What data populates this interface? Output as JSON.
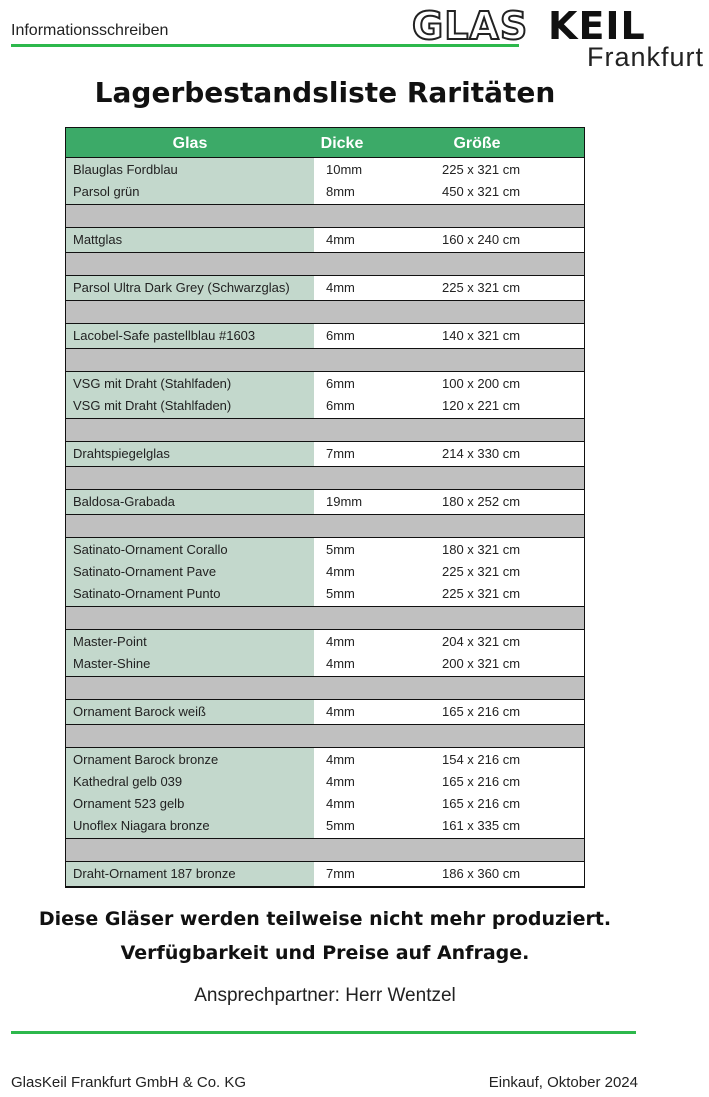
{
  "header": {
    "doc_type": "Informationsschreiben",
    "logo_text": "GLASKEIL Frankfurt",
    "logo_part1": "GLAS",
    "logo_part2": "KEIL",
    "logo_city": "Frankfurt"
  },
  "title": "Lagerbestandsliste Raritäten",
  "table": {
    "columns": [
      "Glas",
      "Dicke",
      "Größe"
    ],
    "groups": [
      [
        [
          "Blauglas Fordblau",
          "10mm",
          "225 x 321 cm"
        ],
        [
          "Parsol grün",
          "8mm",
          "450 x 321 cm"
        ]
      ],
      [
        [
          "Mattglas",
          "4mm",
          "160 x 240 cm"
        ]
      ],
      [
        [
          "Parsol Ultra Dark Grey (Schwarzglas)",
          "4mm",
          "225 x 321 cm"
        ]
      ],
      [
        [
          "Lacobel-Safe pastellblau #1603",
          "6mm",
          "140 x 321 cm"
        ]
      ],
      [
        [
          "VSG mit Draht (Stahlfaden)",
          "6mm",
          "100 x 200 cm"
        ],
        [
          "VSG mit Draht (Stahlfaden)",
          "6mm",
          "120 x 221 cm"
        ]
      ],
      [
        [
          "Drahtspiegelglas",
          "7mm",
          "214 x 330 cm"
        ]
      ],
      [
        [
          "Baldosa-Grabada",
          "19mm",
          "180 x 252 cm"
        ]
      ],
      [
        [
          "Satinato-Ornament Corallo",
          "5mm",
          "180 x 321 cm"
        ],
        [
          "Satinato-Ornament Pave",
          "4mm",
          "225 x 321 cm"
        ],
        [
          "Satinato-Ornament Punto",
          "5mm",
          "225 x 321 cm"
        ]
      ],
      [
        [
          "Master-Point",
          "4mm",
          "204 x 321 cm"
        ],
        [
          "Master-Shine",
          "4mm",
          "200 x 321 cm"
        ]
      ],
      [
        [
          "Ornament Barock weiß",
          "4mm",
          "165 x 216 cm"
        ]
      ],
      [
        [
          "Ornament Barock bronze",
          "4mm",
          "154 x 216 cm"
        ],
        [
          "Kathedral gelb 039",
          "4mm",
          "165 x 216 cm"
        ],
        [
          "Ornament 523 gelb",
          "4mm",
          "165 x 216 cm"
        ],
        [
          "Unoflex Niagara bronze",
          "5mm",
          "161 x 335 cm"
        ]
      ],
      [
        [
          "Draht-Ornament 187 bronze",
          "7mm",
          "186 x 360 cm"
        ]
      ]
    ]
  },
  "notes": [
    "Diese Gläser werden teilweise nicht mehr produziert.",
    "Verfügbarkeit und Preise auf Anfrage."
  ],
  "contact": "Ansprechpartner: Herr Wentzel",
  "footer": {
    "company": "GlasKeil Frankfurt GmbH & Co. KG",
    "date": "Einkauf, Oktober 2024"
  },
  "colors": {
    "accent_green": "#2db84c",
    "header_green": "#3caa68",
    "glas_column": "#c3d8cc",
    "separator": "#c0c0c0"
  }
}
